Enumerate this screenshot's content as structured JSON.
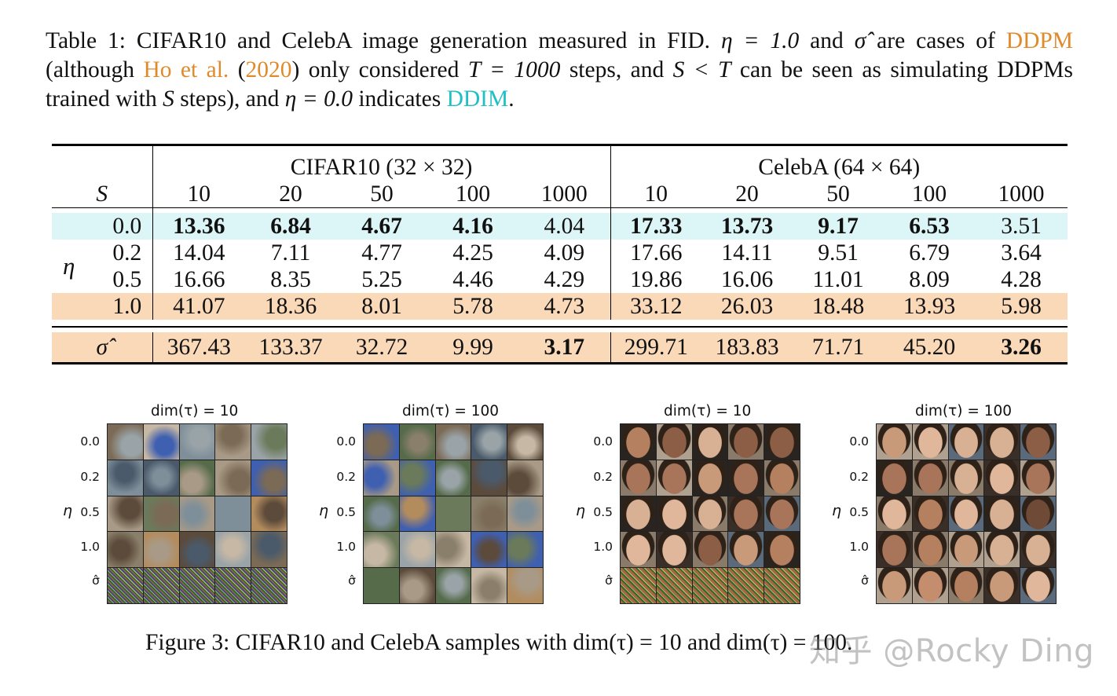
{
  "caption": {
    "p1": "Table 1: CIFAR10 and CelebA image generation measured in FID. ",
    "eta_eq": "η = 1.0",
    "p2": " and ",
    "sigma_hat": "σ̂",
    "p3": " are cases of ",
    "ddpm": "DDPM",
    "p4": " (although ",
    "ho": "Ho et al.",
    "p5": " (",
    "year": "2020",
    "p6": ") only considered ",
    "T_eq": "T = 1000",
    "p7": " steps, and ",
    "S_lt_T": "S < T",
    "p8": " can be seen as simulating DDPMs trained with ",
    "S": "S",
    "p9": " steps), and ",
    "eta_zero": "η = 0.0",
    "p10": " indicates ",
    "ddim": "DDIM",
    "p11": "."
  },
  "table": {
    "cifar_header": "CIFAR10 (32 × 32)",
    "celeba_header": "CelebA (64 × 64)",
    "s_label": "S",
    "eta_label": "η",
    "sigma_label": "σ̂",
    "steps": [
      "10",
      "20",
      "50",
      "100",
      "1000"
    ],
    "rows": [
      {
        "eta": "0.0",
        "cifar": [
          "13.36",
          "6.84",
          "4.67",
          "4.16",
          "4.04"
        ],
        "celeba": [
          "17.33",
          "13.73",
          "9.17",
          "6.53",
          "3.51"
        ]
      },
      {
        "eta": "0.2",
        "cifar": [
          "14.04",
          "7.11",
          "4.77",
          "4.25",
          "4.09"
        ],
        "celeba": [
          "17.66",
          "14.11",
          "9.51",
          "6.79",
          "3.64"
        ]
      },
      {
        "eta": "0.5",
        "cifar": [
          "16.66",
          "8.35",
          "5.25",
          "4.46",
          "4.29"
        ],
        "celeba": [
          "19.86",
          "16.06",
          "11.01",
          "8.09",
          "4.28"
        ]
      },
      {
        "eta": "1.0",
        "cifar": [
          "41.07",
          "18.36",
          "8.01",
          "5.78",
          "4.73"
        ],
        "celeba": [
          "33.12",
          "26.03",
          "18.48",
          "13.93",
          "5.98"
        ]
      }
    ],
    "sigma_row": {
      "cifar": [
        "367.43",
        "133.37",
        "32.72",
        "9.99",
        "3.17"
      ],
      "celeba": [
        "299.71",
        "183.83",
        "71.71",
        "45.20",
        "3.26"
      ]
    }
  },
  "figure": {
    "panels": [
      {
        "title": "dim(τ) = 10",
        "dataset": "CIFAR10"
      },
      {
        "title": "dim(τ) = 100",
        "dataset": "CIFAR10"
      },
      {
        "title": "dim(τ) = 10",
        "dataset": "CelebA"
      },
      {
        "title": "dim(τ) = 100",
        "dataset": "CelebA"
      }
    ],
    "row_labels": [
      "0.0",
      "0.2",
      "0.5",
      "1.0",
      "σ̂"
    ],
    "axis_label": "η",
    "caption_p1": "Figure 3: CIFAR10 and CelebA samples with ",
    "caption_math1": "dim(τ) = 10",
    "caption_p2": " and ",
    "caption_math2": "dim(τ) = 100",
    "caption_p3": "."
  },
  "watermark": "知乎 @Rocky Ding"
}
